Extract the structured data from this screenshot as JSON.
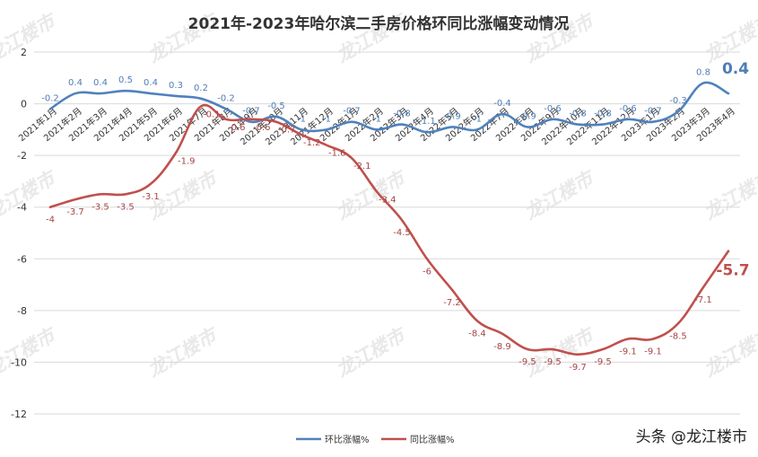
{
  "watermark_text": "龙江楼市",
  "credit": "头条 @龙江楼市",
  "colors": {
    "mom": "#4f81bd",
    "yoy": "#c0504d",
    "grid": "#d9d9d9"
  },
  "chart_data": {
    "type": "line",
    "title": "2021年-2023年哈尔滨二手房价格环同比涨幅变动情况",
    "categories": [
      "2021年1月",
      "2021年2月",
      "2021年3月",
      "2021年4月",
      "2021年5月",
      "2021年6月",
      "2021年7月",
      "2021年8月",
      "2021年9月",
      "2021年10月",
      "2021年11月",
      "2021年12月",
      "2022年1月",
      "2022年2月",
      "2022年3月",
      "2022年4月",
      "2022年5月",
      "2022年6月",
      "2022年7月",
      "2022年8月",
      "2022年9月",
      "2022年10月",
      "2022年11月",
      "2022年12月",
      "2023年1月",
      "2023年2月",
      "2023年3月",
      "2023年4月"
    ],
    "yticks": [
      2,
      0,
      -2,
      -4,
      -6,
      -8,
      -10,
      -12
    ],
    "ylim": [
      -12,
      2
    ],
    "grid": true,
    "legend_position": "bottom",
    "series": [
      {
        "name": "环比涨幅%",
        "values": [
          -0.2,
          0.4,
          0.4,
          0.5,
          0.4,
          0.3,
          0.2,
          -0.2,
          -0.7,
          -0.5,
          -1,
          -1,
          -0.7,
          -1,
          -0.8,
          -1.1,
          -0.9,
          -1,
          -0.4,
          -0.9,
          -0.6,
          -0.8,
          -0.8,
          -0.6,
          -0.7,
          -0.3,
          0.8,
          0.4
        ]
      },
      {
        "name": "同比涨幅%",
        "values": [
          -4,
          -3.7,
          -3.5,
          -3.5,
          -3.1,
          -1.9,
          -0.1,
          -0.6,
          -0.6,
          -0.7,
          -1.2,
          -1.6,
          -2.1,
          -3.4,
          -4.5,
          -6,
          -7.2,
          -8.4,
          -8.9,
          -9.5,
          -9.5,
          -9.7,
          -9.5,
          -9.1,
          -9.1,
          -8.5,
          -7.1,
          -5.7
        ]
      }
    ]
  }
}
